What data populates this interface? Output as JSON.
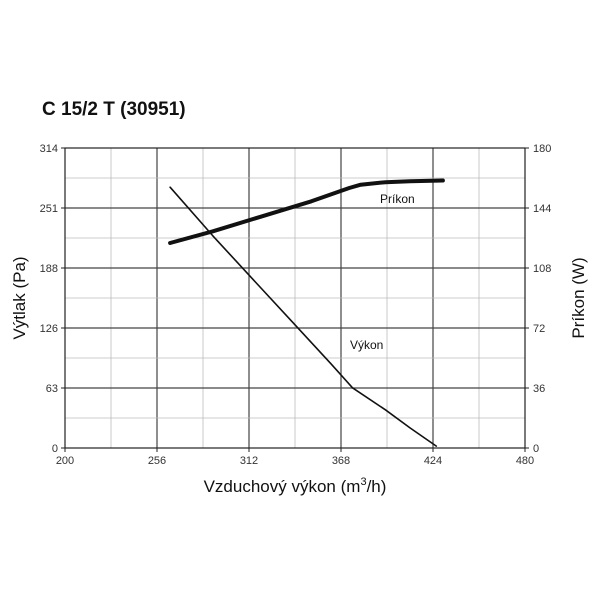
{
  "chart_data": {
    "type": "line",
    "title": "C 15/2 T (30951)",
    "xlabel": "Vzduchový výkon (m",
    "xlabel_sup": "3",
    "xlabel_tail": "/h)",
    "ylabel_left": "Výtlak (Pa)",
    "ylabel_right": "Príkon (W)",
    "xlim": [
      200,
      480
    ],
    "ylim_left": [
      0,
      314
    ],
    "ylim_right": [
      0,
      180
    ],
    "x_ticks": [
      "200",
      "256",
      "312",
      "368",
      "424",
      "480"
    ],
    "y_left_ticks": [
      "0",
      "63",
      "126",
      "188",
      "251",
      "314"
    ],
    "y_right_ticks": [
      "0",
      "36",
      "72",
      "108",
      "144",
      "180"
    ],
    "grid": true,
    "series": [
      {
        "name": "Príkon",
        "axis": "right",
        "color": "#111111",
        "x": [
          264,
          290,
          320,
          350,
          373,
          380,
          395,
          410,
          430
        ],
        "y": [
          123,
          130,
          139,
          148,
          156,
          158,
          159.5,
          160,
          160.5
        ]
      },
      {
        "name": "Výkon",
        "axis": "left",
        "color": "#111111",
        "x": [
          264,
          290,
          312,
          340,
          362,
          375,
          395,
          410,
          426
        ],
        "y": [
          273,
          222,
          181,
          129,
          88,
          63,
          40,
          21,
          2
        ]
      }
    ]
  }
}
